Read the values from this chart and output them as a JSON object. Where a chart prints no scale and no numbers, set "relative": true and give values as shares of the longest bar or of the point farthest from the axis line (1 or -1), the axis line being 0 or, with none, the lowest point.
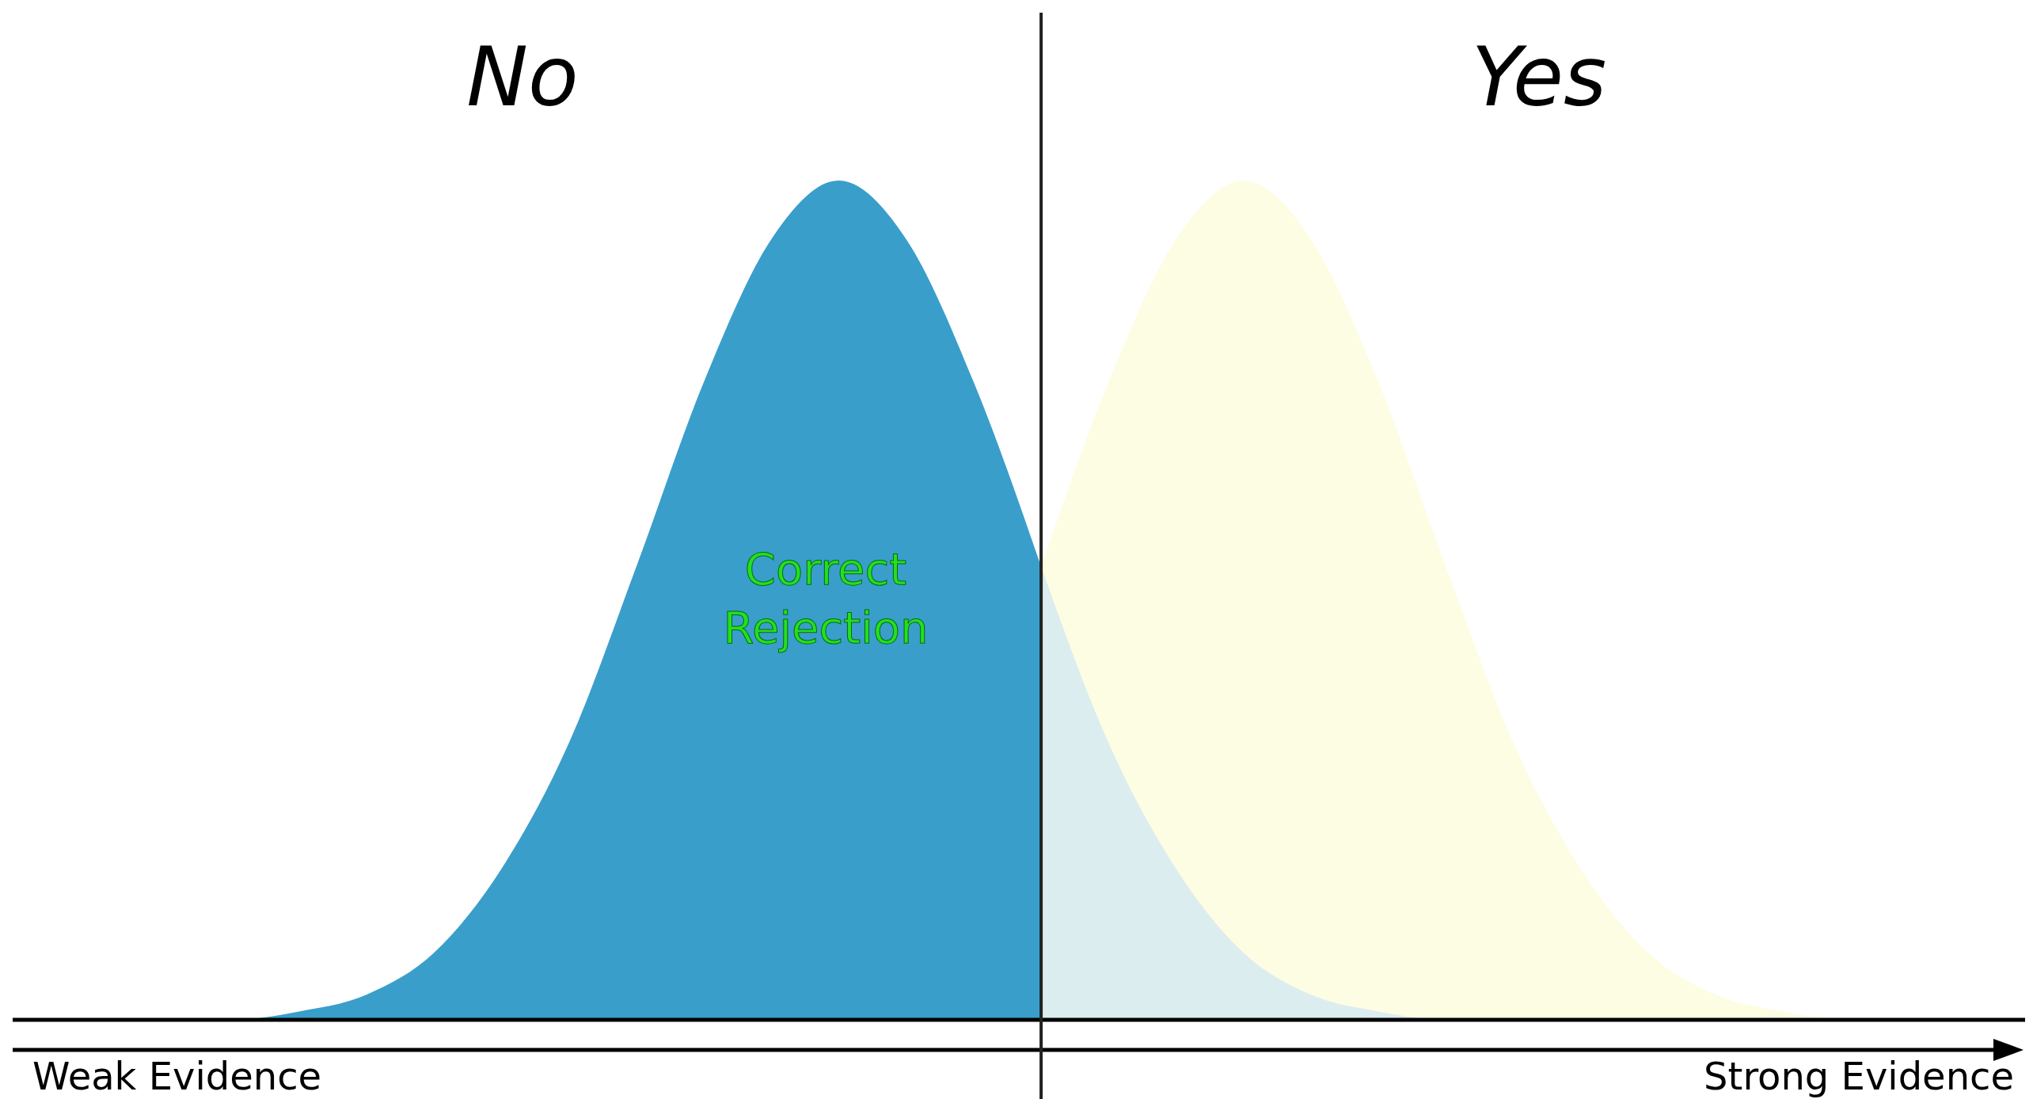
{
  "chart_data": {
    "type": "area",
    "relative": true,
    "categories": [
      null,
      null,
      null,
      null,
      null,
      null,
      null,
      null,
      null,
      null,
      null,
      null,
      null,
      null,
      null,
      null,
      null,
      null,
      null,
      null,
      null,
      null,
      null,
      null,
      null,
      null,
      null,
      null,
      null,
      null
    ],
    "series": [
      {
        "color": "#fdfde4",
        "values": [
          null,
          null,
          null,
          null,
          null,
          null,
          null,
          null,
          null,
          null,
          null,
          null,
          null,
          null,
          null,
          0.54,
          0.76,
          0.93,
          1,
          0.93,
          0.76,
          0.54,
          0.33,
          0.18,
          0.08,
          0.03,
          0.01,
          0,
          0,
          0
        ]
      },
      {
        "color": "#dcedef",
        "values": [
          null,
          null,
          null,
          null,
          null,
          null,
          null,
          null,
          null,
          null,
          null,
          null,
          null,
          null,
          null,
          0.54,
          0.33,
          0.18,
          0.08,
          0.03,
          0.01,
          0,
          0,
          0,
          0,
          0,
          0,
          0,
          0,
          0
        ]
      },
      {
        "color": "#3a9ecb",
        "values": [
          0,
          0,
          0,
          0,
          0.01,
          0.03,
          0.08,
          0.18,
          0.33,
          0.54,
          0.76,
          0.93,
          1,
          0.93,
          0.76,
          0.54,
          null,
          null,
          null,
          null,
          null,
          null,
          null,
          null,
          null,
          null,
          null,
          null,
          null,
          null
        ]
      }
    ],
    "annotations": [
      "No",
      "Yes",
      "Correct Rejection",
      "Weak Evidence",
      "Strong Evidence"
    ]
  }
}
